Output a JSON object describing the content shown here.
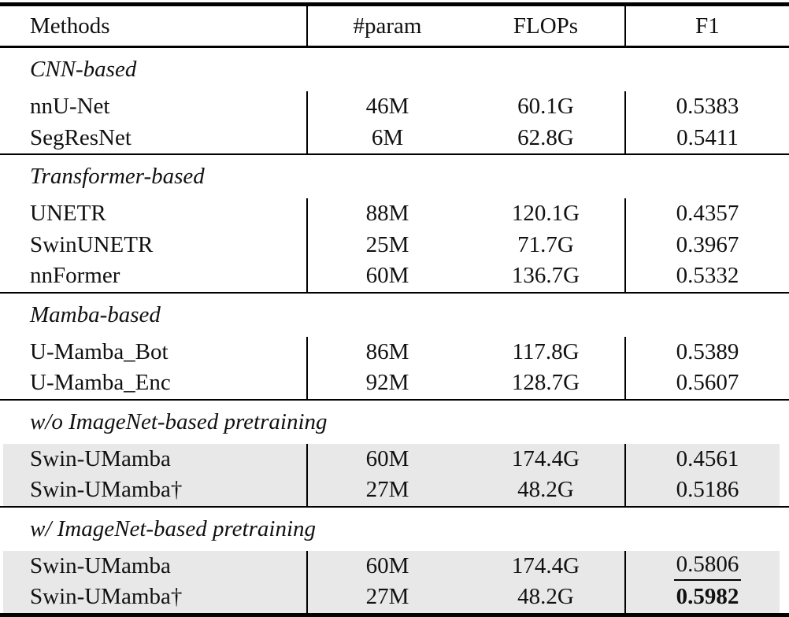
{
  "colors": {
    "highlight": "#e8e8e8",
    "rule": "#000000"
  },
  "table": {
    "columns": [
      "Methods",
      "#param",
      "FLOPs",
      "F1"
    ],
    "sections": [
      {
        "label": "CNN-based",
        "rows": [
          {
            "method": "nnU-Net",
            "param": "46M",
            "flops": "60.1G",
            "f1": "0.5383"
          },
          {
            "method": "SegResNet",
            "param": "6M",
            "flops": "62.8G",
            "f1": "0.5411"
          }
        ]
      },
      {
        "label": "Transformer-based",
        "rows": [
          {
            "method": "UNETR",
            "param": "88M",
            "flops": "120.1G",
            "f1": "0.4357"
          },
          {
            "method": "SwinUNETR",
            "param": "25M",
            "flops": "71.7G",
            "f1": "0.3967"
          },
          {
            "method": "nnFormer",
            "param": "60M",
            "flops": "136.7G",
            "f1": "0.5332"
          }
        ]
      },
      {
        "label": "Mamba-based",
        "rows": [
          {
            "method": "U-Mamba_Bot",
            "param": "86M",
            "flops": "117.8G",
            "f1": "0.5389"
          },
          {
            "method": "U-Mamba_Enc",
            "param": "92M",
            "flops": "128.7G",
            "f1": "0.5607"
          }
        ]
      },
      {
        "label": "w/o ImageNet-based pretraining",
        "rows": [
          {
            "method": "Swin-UMamba",
            "param": "60M",
            "flops": "174.4G",
            "f1": "0.4561"
          },
          {
            "method": "Swin-UMamba†",
            "param": "27M",
            "flops": "48.2G",
            "f1": "0.5186"
          }
        ]
      },
      {
        "label": "w/ ImageNet-based pretraining",
        "rows": [
          {
            "method": "Swin-UMamba",
            "param": "60M",
            "flops": "174.4G",
            "f1": "0.5806",
            "f1_style": "underline"
          },
          {
            "method": "Swin-UMamba†",
            "param": "27M",
            "flops": "48.2G",
            "f1": "0.5982",
            "f1_style": "bold"
          }
        ]
      }
    ]
  }
}
